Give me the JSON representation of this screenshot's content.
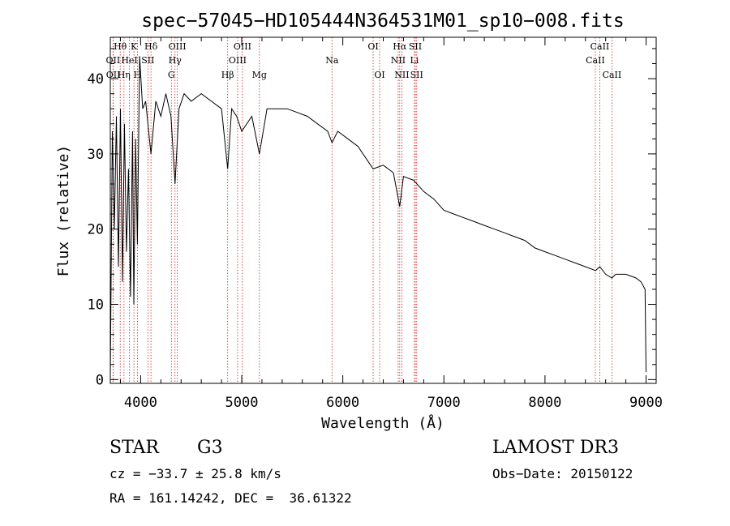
{
  "chart_data": {
    "type": "line",
    "title": "spec−57045−HD105444N364531M01_sp10−008.fits",
    "xlabel": "Wavelength (Å)",
    "ylabel": "Flux (relative)",
    "xlim": [
      3700,
      9100
    ],
    "ylim": [
      -0.5,
      45.5
    ],
    "x_ticks": [
      4000,
      5000,
      6000,
      7000,
      8000,
      9000
    ],
    "y_ticks": [
      0,
      10,
      20,
      30,
      40
    ],
    "grid": false,
    "series": [
      {
        "name": "flux",
        "x": [
          3700,
          3720,
          3740,
          3760,
          3780,
          3800,
          3820,
          3840,
          3860,
          3880,
          3900,
          3920,
          3933,
          3950,
          3968,
          3990,
          4020,
          4050,
          4102,
          4150,
          4200,
          4250,
          4300,
          4340,
          4380,
          4430,
          4500,
          4600,
          4700,
          4800,
          4861,
          4900,
          4950,
          5000,
          5100,
          5175,
          5250,
          5350,
          5450,
          5550,
          5650,
          5750,
          5850,
          5893,
          5950,
          6050,
          6150,
          6250,
          6300,
          6400,
          6500,
          6563,
          6600,
          6700,
          6800,
          6900,
          7000,
          7100,
          7200,
          7300,
          7400,
          7500,
          7600,
          7700,
          7800,
          7900,
          8000,
          8100,
          8200,
          8300,
          8400,
          8500,
          8542,
          8600,
          8662,
          8700,
          8800,
          8900,
          8950,
          8990,
          9000
        ],
        "y": [
          0.5,
          33,
          20,
          35,
          15,
          36,
          13,
          34,
          17,
          28,
          11,
          33,
          10,
          32,
          18,
          43,
          36,
          37,
          30,
          37,
          35,
          38,
          35,
          26,
          36,
          38,
          37,
          38,
          37,
          36,
          28,
          36,
          35,
          33,
          35,
          30,
          36,
          36,
          36,
          35.5,
          35,
          34,
          33,
          31.5,
          33,
          32,
          31,
          29,
          28,
          28.5,
          27.5,
          23,
          27,
          26.5,
          25,
          24,
          22.5,
          22,
          21.5,
          21,
          20.5,
          20,
          19.5,
          19,
          18.5,
          17.5,
          17,
          16.5,
          16,
          15.5,
          15,
          14.5,
          15,
          14,
          13.5,
          14,
          14,
          13.5,
          13,
          12,
          1
        ]
      }
    ],
    "lines": [
      {
        "label": "Hθ",
        "wl": 3798,
        "row": 1
      },
      {
        "label": "OII",
        "wl": 3727,
        "row": 2
      },
      {
        "label": "OII",
        "wl": 3729,
        "row": 3
      },
      {
        "label": "K",
        "wl": 3934,
        "row": 1
      },
      {
        "label": "HeI",
        "wl": 3889,
        "row": 2
      },
      {
        "label": "Hη",
        "wl": 3835,
        "row": 3
      },
      {
        "label": "H",
        "wl": 3968,
        "row": 3
      },
      {
        "label": "Hδ",
        "wl": 4102,
        "row": 1
      },
      {
        "label": "SII",
        "wl": 4072,
        "row": 2
      },
      {
        "label": "OIII",
        "wl": 4363,
        "row": 1
      },
      {
        "label": "Hγ",
        "wl": 4340,
        "row": 2
      },
      {
        "label": "G",
        "wl": 4304,
        "row": 3
      },
      {
        "label": "Hβ",
        "wl": 4861,
        "row": 3
      },
      {
        "label": "OIII",
        "wl": 5007,
        "row": 1
      },
      {
        "label": "OIII",
        "wl": 4959,
        "row": 2
      },
      {
        "label": "Mg",
        "wl": 5175,
        "row": 3
      },
      {
        "label": "Na",
        "wl": 5893,
        "row": 2
      },
      {
        "label": "OI",
        "wl": 6300,
        "row": 1
      },
      {
        "label": "OI",
        "wl": 6364,
        "row": 3
      },
      {
        "label": "Hα",
        "wl": 6563,
        "row": 1
      },
      {
        "label": "NII",
        "wl": 6548,
        "row": 2
      },
      {
        "label": "NII",
        "wl": 6584,
        "row": 3
      },
      {
        "label": "SII",
        "wl": 6717,
        "row": 1
      },
      {
        "label": "Li",
        "wl": 6708,
        "row": 2
      },
      {
        "label": "SII",
        "wl": 6731,
        "row": 3
      },
      {
        "label": "CaII",
        "wl": 8542,
        "row": 1
      },
      {
        "label": "CaII",
        "wl": 8498,
        "row": 2
      },
      {
        "label": "CaII",
        "wl": 8662,
        "row": 3
      }
    ],
    "colors": {
      "spectrum": "#000000",
      "line_marker": "#cc2222",
      "axis": "#000000"
    }
  },
  "info": {
    "object_class": "STAR",
    "subclass": "G3",
    "survey": "LAMOST DR3",
    "cz": "cz = −33.7 ± 25.8 km/s",
    "obs_date": "Obs−Date: 20150122",
    "coords": "RA = 161.14242, DEC =  36.61322"
  }
}
